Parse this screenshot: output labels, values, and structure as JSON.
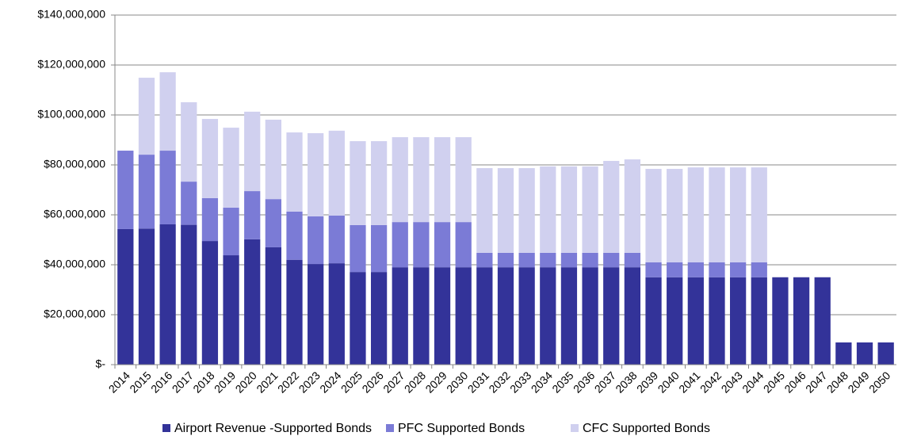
{
  "chart_data": {
    "type": "stacked_bar",
    "categories": [
      "2014",
      "2015",
      "2016",
      "2017",
      "2018",
      "2019",
      "2020",
      "2021",
      "2022",
      "2023",
      "2024",
      "2025",
      "2026",
      "2027",
      "2028",
      "2029",
      "2030",
      "2031",
      "2032",
      "2033",
      "2034",
      "2035",
      "2036",
      "2037",
      "2038",
      "2039",
      "2040",
      "2041",
      "2042",
      "2043",
      "2044",
      "2045",
      "2046",
      "2047",
      "2048",
      "2049",
      "2050"
    ],
    "series": [
      {
        "name": "Airport Revenue -Supported Bonds",
        "color": "#333399",
        "values": [
          54300000,
          54500000,
          56200000,
          56000000,
          49500000,
          43800000,
          50200000,
          47000000,
          42000000,
          40300000,
          40600000,
          37100000,
          37100000,
          39000000,
          39000000,
          39000000,
          39000000,
          39000000,
          39000000,
          39000000,
          39000000,
          39000000,
          39000000,
          39000000,
          39000000,
          35000000,
          35000000,
          35000000,
          35000000,
          35000000,
          35000000,
          35000000,
          35000000,
          35000000,
          8900000,
          8900000,
          8900000
        ]
      },
      {
        "name": "PFC Supported Bonds",
        "color": "#7b7bd6",
        "values": [
          31400000,
          29600000,
          29500000,
          17300000,
          17200000,
          19100000,
          19300000,
          19300000,
          19300000,
          19100000,
          19100000,
          18800000,
          18800000,
          18100000,
          18100000,
          18100000,
          18100000,
          5800000,
          5800000,
          5800000,
          5800000,
          5800000,
          5800000,
          5800000,
          5800000,
          6000000,
          6000000,
          6000000,
          6000000,
          6000000,
          6000000,
          0,
          0,
          0,
          0,
          0,
          0
        ]
      },
      {
        "name": "CFC Supported Bonds",
        "color": "#d0d0ef",
        "values": [
          0,
          30800000,
          31400000,
          31800000,
          31700000,
          32000000,
          31800000,
          31800000,
          31700000,
          33300000,
          34000000,
          33600000,
          33600000,
          34000000,
          34000000,
          34000000,
          34000000,
          33900000,
          33900000,
          33900000,
          34600000,
          34600000,
          34600000,
          36800000,
          37400000,
          37400000,
          37400000,
          38000000,
          38000000,
          38000000,
          38000000,
          0,
          0,
          0,
          0,
          0,
          0
        ]
      }
    ],
    "ylim": [
      0,
      140000000
    ],
    "yticks": [
      {
        "value": 0,
        "label": "$-"
      },
      {
        "value": 20000000,
        "label": "$20,000,000"
      },
      {
        "value": 40000000,
        "label": "$40,000,000"
      },
      {
        "value": 60000000,
        "label": "$60,000,000"
      },
      {
        "value": 80000000,
        "label": "$80,000,000"
      },
      {
        "value": 100000000,
        "label": "$100,000,000"
      },
      {
        "value": 120000000,
        "label": "$120,000,000"
      },
      {
        "value": 140000000,
        "label": "$140,000,000"
      }
    ],
    "grid": true,
    "legend": "bottom"
  }
}
